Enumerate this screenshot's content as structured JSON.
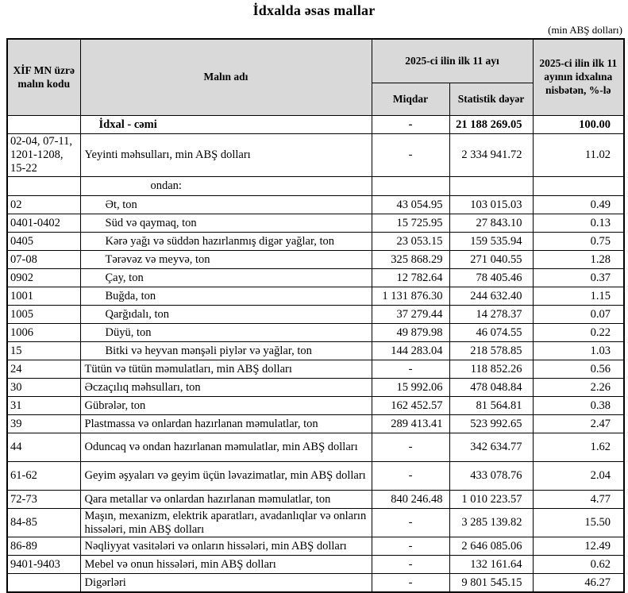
{
  "title": "İdxalda əsas mallar",
  "unit_note": "(min ABŞ dolları)",
  "colors": {
    "header_bg": "#d9d9d9",
    "border": "#000000",
    "text": "#000000"
  },
  "table": {
    "headers": {
      "code": "XİF MN üzrə malın kodu",
      "name": "Malın adı",
      "period": "2025-ci ilin ilk 11 ayı",
      "qty": "Miqdar",
      "value": "Statistik dəyər",
      "pct": "2025-ci ilin ilk 11 ayının idxalına nisbətən, %-lə"
    },
    "rows": [
      {
        "code": "",
        "name": "İdxal - cəmi",
        "qty": "-",
        "value": "21 188 269.05",
        "pct": "100.00",
        "ind": "total",
        "bold": true
      },
      {
        "code": "02-04, 07-11, 1201-1208, 15-22",
        "name": "Yeyinti məhsulları, min ABŞ dolları",
        "qty": "-",
        "value": "2 334 941.72",
        "pct": "11.02",
        "h": "l"
      },
      {
        "code": "",
        "name": "ondan:",
        "qty": "",
        "value": "",
        "pct": "",
        "ind": "ondan",
        "h": "s"
      },
      {
        "code": "02",
        "name": "Ət, ton",
        "qty": "43 054.95",
        "value": "103 015.03",
        "pct": "0.49",
        "ind": "sub"
      },
      {
        "code": "0401-0402",
        "name": "Süd və qaymaq, ton",
        "qty": "15 725.95",
        "value": "27 843.10",
        "pct": "0.13",
        "ind": "sub"
      },
      {
        "code": "0405",
        "name": "Kərə yağı və süddən hazırlanmış digər yağlar, ton",
        "qty": "23 053.15",
        "value": "159 535.94",
        "pct": "0.75",
        "ind": "sub"
      },
      {
        "code": "07-08",
        "name": "Tərəvəz və meyvə, ton",
        "qty": "325 868.29",
        "value": "271 040.55",
        "pct": "1.28",
        "ind": "sub"
      },
      {
        "code": "0902",
        "name": "Çay, ton",
        "qty": "12 782.64",
        "value": "78 405.46",
        "pct": "0.37",
        "ind": "sub"
      },
      {
        "code": "1001",
        "name": "Buğda, ton",
        "qty": "1 131 876.30",
        "value": "244 632.40",
        "pct": "1.15",
        "ind": "sub"
      },
      {
        "code": "1005",
        "name": "Qarğıdalı, ton",
        "qty": "37 279.44",
        "value": "14 278.37",
        "pct": "0.07",
        "ind": "sub"
      },
      {
        "code": "1006",
        "name": "Düyü, ton",
        "qty": "49 879.98",
        "value": "46 074.55",
        "pct": "0.22",
        "ind": "sub"
      },
      {
        "code": "15",
        "name": "Bitki və heyvan mənşəli piylər və yağlar, ton",
        "qty": "144 283.04",
        "value": "218 578.85",
        "pct": "1.03",
        "ind": "sub"
      },
      {
        "code": "24",
        "name": "Tütün və tütün məmulatları, min ABŞ dolları",
        "qty": "-",
        "value": "118 852.26",
        "pct": "0.56"
      },
      {
        "code": "30",
        "name": "Əczaçılıq məhsulları, ton",
        "qty": "15 992.06",
        "value": "478 048.84",
        "pct": "2.26"
      },
      {
        "code": "31",
        "name": "Gübrələr, ton",
        "qty": "162 452.57",
        "value": "81 564.81",
        "pct": "0.38"
      },
      {
        "code": "39",
        "name": "Plastmassa və onlardan hazırlanan məmulatlar, ton",
        "qty": "289 413.41",
        "value": "523 992.65",
        "pct": "2.47"
      },
      {
        "code": "44",
        "name": "Oduncaq və ondan hazırlanan məmulatlar, min ABŞ dolları",
        "qty": "-",
        "value": "342 634.77",
        "pct": "1.62",
        "h": "m"
      },
      {
        "code": "61-62",
        "name": "Geyim əşyaları və geyim üçün ləvazimatlar, min ABŞ dolları",
        "qty": "-",
        "value": "433 078.76",
        "pct": "2.04",
        "h": "m"
      },
      {
        "code": "72-73",
        "name": "Qara metallar və onlardan hazırlanan məmulatlar, ton",
        "qty": "840 246.48",
        "value": "1 010 223.57",
        "pct": "4.77"
      },
      {
        "code": "84-85",
        "name": "Maşın, mexanizm, elektrik aparatları, avadanlıqlar və onların hissələri, min ABŞ dolları",
        "qty": "-",
        "value": "3 285 139.82",
        "pct": "15.50",
        "h": "m"
      },
      {
        "code": "86-89",
        "name": "Nəqliyyat vasitələri və onların hissələri, min ABŞ dolları",
        "qty": "-",
        "value": "2 646 085.06",
        "pct": "12.49"
      },
      {
        "code": "9401-9403",
        "name": "Mebel və onun hissələri, min ABŞ dolları",
        "qty": "-",
        "value": "132 161.64",
        "pct": "0.62"
      },
      {
        "code": "",
        "name": "Digərləri",
        "qty": "-",
        "value": "9 801 545.15",
        "pct": "46.27"
      }
    ]
  }
}
